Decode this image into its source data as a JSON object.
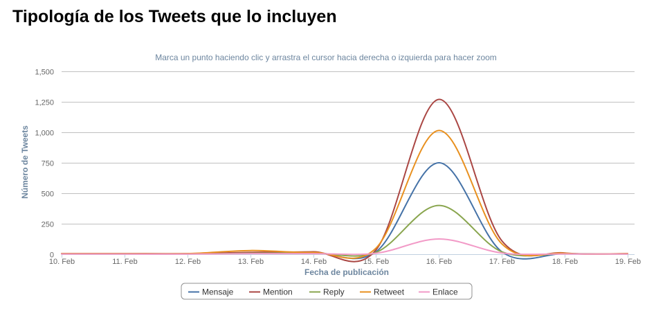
{
  "page": {
    "title": "Tipología de los Tweets que lo incluyen"
  },
  "chart_data": {
    "type": "line",
    "smooth": true,
    "subtitle": "Marca un punto haciendo clic y arrastra el cursor hacia derecha o izquierda para hacer zoom",
    "xlabel": "Fecha de publicación",
    "ylabel": "Número de Tweets",
    "categories": [
      "10. Feb",
      "11. Feb",
      "12. Feb",
      "13. Feb",
      "14. Feb",
      "15. Feb",
      "16. Feb",
      "17. Feb",
      "18. Feb",
      "19. Feb"
    ],
    "ylim": [
      0,
      1500
    ],
    "yticks": [
      0,
      250,
      500,
      750,
      1000,
      1250,
      1500
    ],
    "ytick_labels": [
      "0",
      "250",
      "500",
      "750",
      "1,000",
      "1,250",
      "1,500"
    ],
    "grid": true,
    "legend_position": "bottom-center",
    "series": [
      {
        "name": "Mensaje",
        "color": "#4572a7",
        "values": [
          3,
          3,
          3,
          10,
          15,
          20,
          750,
          20,
          5,
          3
        ]
      },
      {
        "name": "Mention",
        "color": "#aa4643",
        "values": [
          5,
          5,
          5,
          15,
          20,
          35,
          1270,
          110,
          10,
          5
        ]
      },
      {
        "name": "Reply",
        "color": "#89a54e",
        "values": [
          2,
          2,
          2,
          8,
          10,
          15,
          400,
          20,
          4,
          2
        ]
      },
      {
        "name": "Retweet",
        "color": "#e8901f",
        "values": [
          4,
          4,
          5,
          30,
          15,
          50,
          1015,
          85,
          8,
          4
        ]
      },
      {
        "name": "Enlace",
        "color": "#f29ac7",
        "values": [
          1,
          1,
          1,
          5,
          5,
          8,
          125,
          10,
          2,
          1
        ]
      }
    ]
  }
}
